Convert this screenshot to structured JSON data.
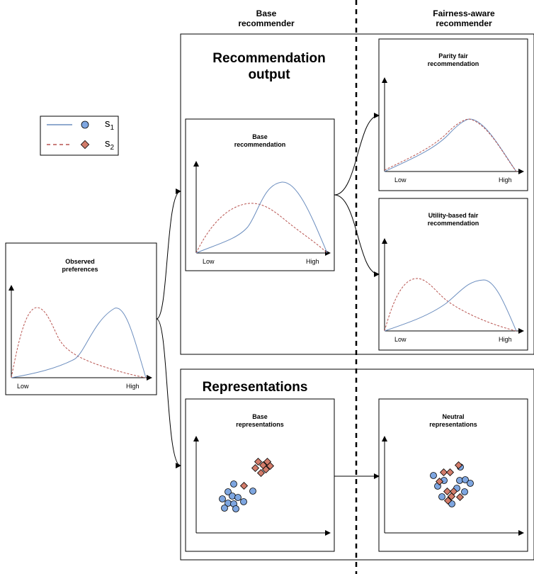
{
  "columns": {
    "base": "Base\nrecommender",
    "fair": "Fairness-aware\nrecommender"
  },
  "sections": {
    "recommendation_output": "Recommendation\noutput",
    "representations": "Representations"
  },
  "legend": {
    "s1": {
      "label": "s",
      "sub": "1",
      "color": "#6c8ebf"
    },
    "s2": {
      "label": "s",
      "sub": "2",
      "color": "#b85450"
    }
  },
  "panels": {
    "observed": {
      "title": "Observed\npreferences",
      "low": "Low",
      "high": "High"
    },
    "base_rec": {
      "title": "Base\nrecommendation",
      "low": "Low",
      "high": "High"
    },
    "parity": {
      "title": "Parity fair\nrecommendation",
      "low": "Low",
      "high": "High"
    },
    "utility": {
      "title": "Utility-based fair\nrecommendation",
      "low": "Low",
      "high": "High"
    },
    "base_repr": {
      "title": "Base\nrepresentations"
    },
    "neutral_repr": {
      "title": "Neutral\nrepresentations"
    }
  },
  "colors": {
    "s1_line": "#6c8ebf",
    "s2_line": "#b85450",
    "s1_fill": "#7ea6e0",
    "s2_fill": "#d27c6a"
  }
}
